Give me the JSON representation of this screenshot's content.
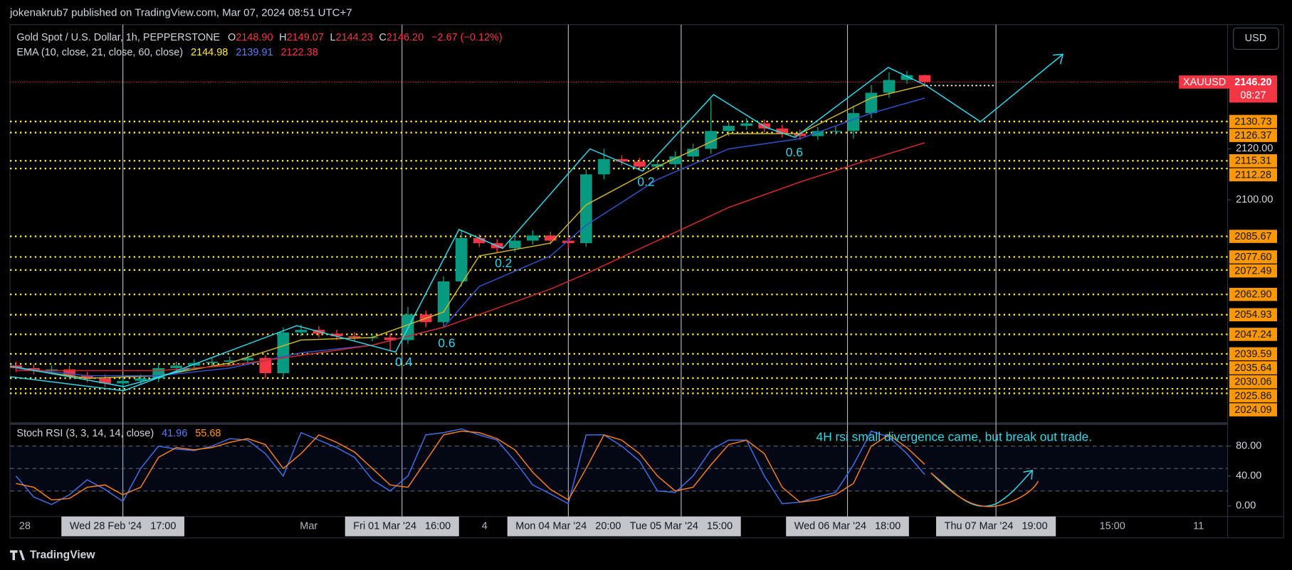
{
  "header": {
    "publisher": "jokenakrub7 published on TradingView.com, Mar 07, 2024 08:51 UTC+7",
    "currency": "USD"
  },
  "footer": {
    "brand": "TradingView"
  },
  "chart_data": [
    {
      "type": "candlestick",
      "title": "Gold Spot / U.S. Dollar, 1h, PEPPERSTONE",
      "ohlc_legend": [
        {
          "key": "O",
          "value": "2148.90"
        },
        {
          "key": "H",
          "value": "2149.07"
        },
        {
          "key": "L",
          "value": "2144.23"
        },
        {
          "key": "C",
          "value": "2146.20"
        }
      ],
      "change": "−2.67 (−0.12%)",
      "up_color": "#089981",
      "down_color": "#f23645",
      "x": [
        -18,
        -15,
        -12,
        -9,
        -6,
        -3,
        0,
        3,
        6,
        9,
        12,
        15,
        18,
        21,
        24,
        27,
        30,
        33,
        36,
        39,
        42,
        45,
        48,
        51,
        54,
        57,
        60,
        63,
        66,
        69,
        72,
        75,
        78,
        81,
        84,
        87,
        90,
        93,
        96,
        99,
        102,
        105,
        108,
        111,
        114,
        117,
        120,
        123,
        126,
        129,
        132,
        135
      ],
      "open": [
        2035,
        2034,
        2033,
        2033.5,
        2031,
        2030,
        2028,
        2029,
        2030,
        2034,
        2035,
        2036,
        2036.5,
        2037,
        2038,
        2032,
        2048,
        2049,
        2047.5,
        2046.5,
        2046,
        2046,
        2045,
        2055,
        2052,
        2068,
        2085,
        2083,
        2081,
        2084,
        2086,
        2084,
        2083,
        2110,
        2116,
        2115,
        2113,
        2114,
        2117,
        2120,
        2127,
        2129,
        2130,
        2128,
        2126,
        2125,
        2127,
        2127,
        2134,
        2142,
        2147,
        2148.9
      ],
      "high": [
        2036.5,
        2035.5,
        2035,
        2035,
        2032.5,
        2031.5,
        2030.5,
        2031.5,
        2035.5,
        2036.5,
        2037.5,
        2038,
        2038.5,
        2039.5,
        2039,
        2050,
        2051,
        2050.5,
        2049,
        2048,
        2047.5,
        2047.5,
        2058,
        2056.5,
        2070,
        2088,
        2086.5,
        2084.5,
        2086,
        2088,
        2087.5,
        2085.5,
        2112,
        2120,
        2117.5,
        2116.5,
        2115.5,
        2119,
        2122,
        2139.5,
        2131,
        2132,
        2131.5,
        2129.5,
        2127.5,
        2128.5,
        2129,
        2137,
        2145,
        2150,
        2150.5,
        2149.07
      ],
      "low": [
        2032.5,
        2031.5,
        2031.5,
        2029.5,
        2028.5,
        2026.5,
        2025.2,
        2027.5,
        2028.5,
        2032.5,
        2033.5,
        2034.5,
        2035,
        2035.5,
        2030,
        2030.5,
        2046.5,
        2046,
        2045,
        2044.5,
        2044.5,
        2041,
        2043.5,
        2050,
        2050,
        2066,
        2081.5,
        2079.5,
        2079.5,
        2082.5,
        2082.5,
        2081,
        2081.5,
        2108,
        2113.5,
        2111.5,
        2111.5,
        2112.5,
        2115.5,
        2118,
        2125,
        2127.5,
        2126.5,
        2124.5,
        2123.5,
        2123.5,
        2125.5,
        2124,
        2132,
        2140,
        2145.5,
        2144.23
      ],
      "close": [
        2034,
        2033,
        2033.5,
        2031,
        2030,
        2028,
        2029,
        2030,
        2034,
        2035,
        2036,
        2036.5,
        2037,
        2038,
        2032,
        2048,
        2049,
        2047.5,
        2046.5,
        2046,
        2046,
        2045,
        2055,
        2052,
        2068,
        2085,
        2083,
        2081,
        2084,
        2086,
        2084,
        2083,
        2110,
        2116,
        2115,
        2113,
        2114,
        2117,
        2120,
        2127,
        2129,
        2130,
        2128,
        2126,
        2125,
        2127,
        2127,
        2134,
        2142,
        2147,
        2148.9,
        2146.2
      ],
      "ema_legend": "EMA (10, close, 21, close, 60, close)",
      "series": [
        {
          "color": "#c9b32a",
          "legend_value": "2144.98",
          "x": [
            -18,
            -6,
            6,
            18,
            30,
            42,
            54,
            60,
            72,
            78,
            90,
            102,
            114,
            126,
            135
          ],
          "values": [
            2034,
            2030,
            2031,
            2036,
            2045,
            2046,
            2056,
            2078,
            2083,
            2098,
            2113,
            2126,
            2126,
            2140,
            2144.98
          ]
        },
        {
          "color": "#2f52c8",
          "legend_value": "2139.91",
          "x": [
            -18,
            -6,
            6,
            18,
            30,
            42,
            54,
            60,
            72,
            78,
            90,
            102,
            114,
            126,
            135
          ],
          "values": [
            2034,
            2031,
            2031,
            2034,
            2040,
            2043,
            2050,
            2066,
            2078,
            2090,
            2108,
            2120,
            2124,
            2134,
            2139.91
          ]
        },
        {
          "color": "#d12a2a",
          "legend_value": "2122.38",
          "x": [
            -18,
            -6,
            6,
            18,
            30,
            42,
            54,
            60,
            72,
            78,
            90,
            102,
            114,
            126,
            135
          ],
          "values": [
            2033,
            2033,
            2033,
            2035,
            2039,
            2043,
            2050,
            2055,
            2065,
            2071,
            2084,
            2097,
            2107,
            2116,
            2122.38
          ]
        }
      ],
      "levels": {
        "color": "#ffeb3b",
        "label_color": "#ff9800",
        "values": [
          2130.73,
          2126.37,
          2115.31,
          2112.28,
          2085.67,
          2077.6,
          2072.49,
          2062.9,
          2054.93,
          2047.24,
          2039.59,
          2035.64,
          2030.06,
          2025.86,
          2024.09
        ],
        "value_labels": [
          "2130.73",
          "2126.37",
          "2115.31",
          "2112.28",
          "2085.67",
          "2077.60",
          "2072.49",
          "2062.90",
          "2054.93",
          "2047.24",
          "2039.59",
          "2035.64",
          "2030.06",
          "2025.86",
          "2024.09"
        ]
      },
      "last_price": {
        "value": 2146.2,
        "label": "2146.20",
        "symbol": "XAUUSD",
        "countdown": "08:27",
        "color": "#f23645"
      },
      "annotations": [
        "0.4",
        "0.6",
        "0.2",
        "0.2",
        "0.6"
      ],
      "xlim": [
        -19,
        186
      ],
      "xticks": [
        {
          "value": -16.5,
          "label": "28"
        },
        {
          "value": 0,
          "label": "Wed 28 Feb '24   17:00",
          "boxed": true
        },
        {
          "value": 31.3,
          "label": "Mar"
        },
        {
          "value": 47,
          "label": "Fri 01 Mar '24   16:00",
          "boxed": true
        },
        {
          "value": 60.9,
          "label": "4"
        },
        {
          "value": 75,
          "label": "Mon 04 Mar '24   20:00",
          "boxed": true
        },
        {
          "value": 94,
          "label": "Tue 05 Mar '24   15:00",
          "boxed": true
        },
        {
          "value": 122,
          "label": "Wed 06 Mar '24   18:00",
          "boxed": true
        },
        {
          "value": 147,
          "label": "Thu 07 Mar '24   19:00",
          "boxed": true
        },
        {
          "value": 166.6,
          "label": "15:00"
        },
        {
          "value": 181.1,
          "label": "11"
        }
      ],
      "ylim": [
        2013.2,
        2168.7
      ],
      "yticks": [
        {
          "value": 2120,
          "label": "2120.00"
        },
        {
          "value": 2100,
          "label": "2100.00"
        }
      ]
    },
    {
      "type": "line",
      "title": "Stoch RSI (3, 3, 14, 14, close)",
      "annotation": "4H rsi small divergence came, but break out trade.",
      "band": [
        20,
        80
      ],
      "midline": 50,
      "x": [
        -18,
        -15,
        -12,
        -9,
        -6,
        -3,
        0,
        3,
        6,
        9,
        12,
        15,
        18,
        21,
        24,
        27,
        30,
        33,
        36,
        39,
        42,
        45,
        48,
        51,
        54,
        57,
        60,
        63,
        66,
        69,
        72,
        75,
        78,
        81,
        84,
        87,
        90,
        93,
        96,
        99,
        102,
        105,
        108,
        111,
        114,
        117,
        120,
        123,
        126,
        129,
        132,
        135
      ],
      "series": [
        {
          "color": "#3d6ee8",
          "legend_value": "41.96",
          "values": [
            40,
            12,
            2,
            15,
            35,
            22,
            6,
            50,
            80,
            76,
            74,
            80,
            90,
            88,
            70,
            40,
            98,
            88,
            78,
            65,
            35,
            20,
            40,
            95,
            98,
            103,
            95,
            88,
            60,
            28,
            16,
            3,
            95,
            95,
            80,
            60,
            20,
            18,
            40,
            75,
            88,
            88,
            40,
            3,
            5,
            12,
            18,
            55,
            100,
            92,
            70,
            41.96
          ]
        },
        {
          "color": "#f57c1f",
          "legend_value": "55.68",
          "values": [
            30,
            25,
            8,
            10,
            25,
            28,
            15,
            25,
            65,
            78,
            75,
            78,
            85,
            90,
            82,
            50,
            70,
            95,
            85,
            72,
            50,
            28,
            25,
            60,
            95,
            100,
            98,
            90,
            75,
            45,
            22,
            8,
            50,
            95,
            88,
            70,
            40,
            20,
            25,
            55,
            82,
            88,
            70,
            25,
            5,
            8,
            15,
            30,
            80,
            95,
            78,
            55.68
          ]
        }
      ],
      "xlim": [
        -19,
        186
      ],
      "ylim": [
        -14.2,
        106.8
      ],
      "yticks": [
        {
          "value": 80,
          "label": "80.00"
        },
        {
          "value": 40,
          "label": "40.00"
        },
        {
          "value": 0,
          "label": "0.00"
        }
      ]
    }
  ]
}
